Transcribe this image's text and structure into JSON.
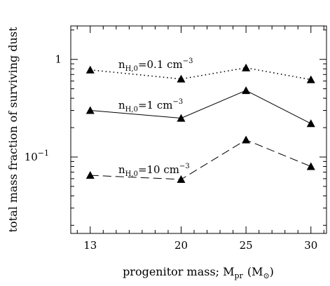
{
  "chart_data": {
    "type": "line",
    "xlabel": "progenitor mass; M",
    "xlabel_sub": "pr",
    "xlabel_unit": "(M",
    "xlabel_unit_sub": "⊙",
    "xlabel_close": ")",
    "ylabel": "total mass fraction of surviving dust",
    "yscale": "log",
    "ylim": [
      0.0165,
      2.2
    ],
    "x": [
      13,
      20,
      25,
      30
    ],
    "xtick_labels": [
      "13",
      "20",
      "25",
      "30"
    ],
    "ytick_labels": [
      {
        "value": 1,
        "base": "1",
        "exp": ""
      },
      {
        "value": 0.1,
        "base": "10",
        "exp": "−1"
      }
    ],
    "grid": false,
    "series": [
      {
        "values": [
          0.78,
          0.63,
          0.82,
          0.62
        ],
        "line_style": "dotted",
        "marker": "triangle",
        "label": {
          "pre": "n",
          "sub": "H,0",
          "mid": "=0.1  cm",
          "sup": "−3"
        }
      },
      {
        "values": [
          0.3,
          0.25,
          0.48,
          0.22
        ],
        "line_style": "solid",
        "marker": "triangle",
        "label": {
          "pre": "n",
          "sub": "H,0",
          "mid": "=1  cm",
          "sup": "−3"
        }
      },
      {
        "values": [
          0.065,
          0.059,
          0.15,
          0.08
        ],
        "line_style": "dashed",
        "marker": "triangle",
        "label": {
          "pre": "n",
          "sub": "H,0",
          "mid": "=10  cm",
          "sup": "−3"
        }
      }
    ]
  }
}
